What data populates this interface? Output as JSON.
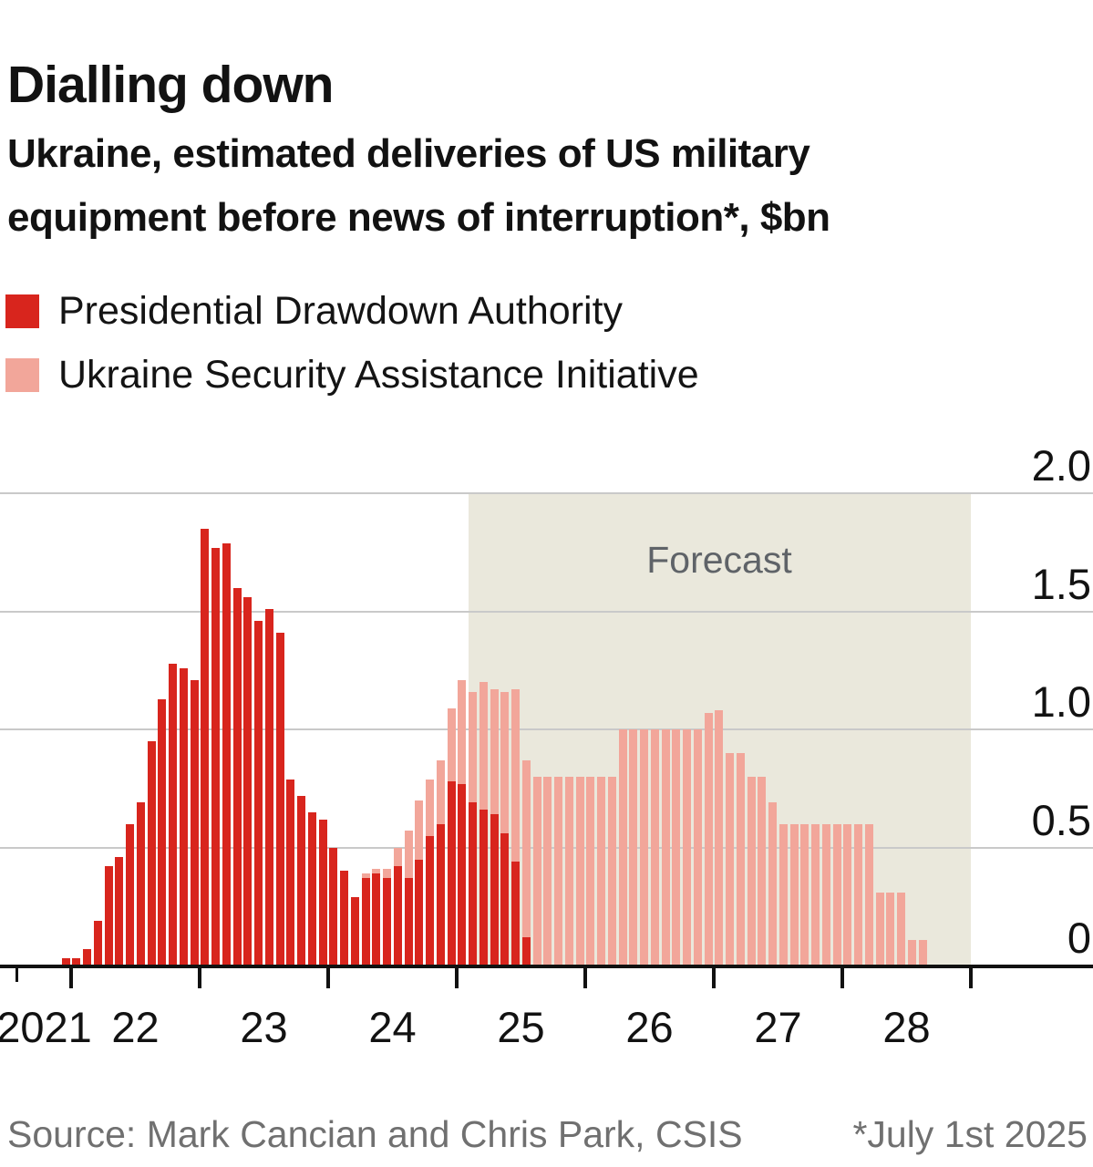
{
  "title": "Dialling down",
  "subtitle": "Ukraine, estimated deliveries of US military equipment before news of interruption*, $bn",
  "legend": [
    {
      "label": "Presidential Drawdown Authority",
      "color": "#D8251D"
    },
    {
      "label": "Ukraine Security Assistance Initiative",
      "color": "#F2A69A"
    }
  ],
  "forecast_label": "Forecast",
  "source": "Source: Mark Cancian and Chris Park, CSIS",
  "footnote": "*July 1st 2025",
  "colors": {
    "pda_red": "#D8251D",
    "usai_pink": "#F2A69A",
    "forecast_bg": "#EAE8DC",
    "gridline": "#C9C9C9",
    "axis": "#111111",
    "forecast_text": "#5F6368",
    "source_text": "#707070"
  },
  "chart_data": {
    "type": "bar",
    "stacked": true,
    "title": "Ukraine, estimated deliveries of US military equipment before news of interruption, $bn",
    "unit": "$bn",
    "x_start_month": "2021-12",
    "x_months_count": 81,
    "ylim": [
      0,
      2.0
    ],
    "y_ticks": [
      {
        "v": 2.0,
        "label": "2.0"
      },
      {
        "v": 1.5,
        "label": "1.5"
      },
      {
        "v": 1.0,
        "label": "1.0"
      },
      {
        "v": 0.5,
        "label": "0.5"
      },
      {
        "v": 0.0,
        "label": "0"
      }
    ],
    "x_tick_year_labels": [
      "2021",
      "22",
      "23",
      "24",
      "25",
      "26",
      "27",
      "28"
    ],
    "grid": true,
    "legend_position": "top-left",
    "forecast_start_month": "2025-02",
    "forecast_end_month": "2029-01",
    "series": [
      {
        "name": "Presidential Drawdown Authority",
        "values": [
          0.03,
          0.03,
          0.07,
          0.19,
          0.42,
          0.46,
          0.6,
          0.69,
          0.95,
          1.13,
          1.28,
          1.26,
          1.21,
          1.85,
          1.77,
          1.79,
          1.6,
          1.56,
          1.46,
          1.51,
          1.41,
          0.79,
          0.72,
          0.65,
          0.62,
          0.5,
          0.4,
          0.29,
          0.37,
          0.39,
          0.37,
          0.42,
          0.37,
          0.45,
          0.55,
          0.6,
          0.78,
          0.77,
          0.69,
          0.66,
          0.64,
          0.56,
          0.44,
          0.12,
          0,
          0,
          0,
          0,
          0,
          0,
          0,
          0,
          0,
          0,
          0,
          0,
          0,
          0,
          0,
          0,
          0,
          0,
          0,
          0,
          0,
          0,
          0,
          0,
          0,
          0,
          0,
          0,
          0,
          0,
          0,
          0,
          0,
          0,
          0,
          0,
          0
        ]
      },
      {
        "name": "Ukraine Security Assistance Initiative",
        "values": [
          0,
          0,
          0,
          0,
          0,
          0,
          0,
          0,
          0,
          0,
          0,
          0,
          0,
          0,
          0,
          0,
          0,
          0,
          0,
          0,
          0,
          0,
          0,
          0,
          0,
          0,
          0,
          0,
          0.02,
          0.02,
          0.04,
          0.08,
          0.2,
          0.25,
          0.24,
          0.27,
          0.31,
          0.44,
          0.47,
          0.54,
          0.53,
          0.6,
          0.73,
          0.75,
          0.8,
          0.8,
          0.8,
          0.8,
          0.8,
          0.8,
          0.8,
          0.8,
          1.0,
          1.0,
          1.0,
          1.0,
          1.0,
          1.0,
          1.0,
          1.0,
          1.07,
          1.08,
          0.9,
          0.9,
          0.8,
          0.8,
          0.69,
          0.6,
          0.6,
          0.6,
          0.6,
          0.6,
          0.6,
          0.6,
          0.6,
          0.6,
          0.31,
          0.31,
          0.31,
          0.11,
          0.11
        ]
      }
    ]
  }
}
